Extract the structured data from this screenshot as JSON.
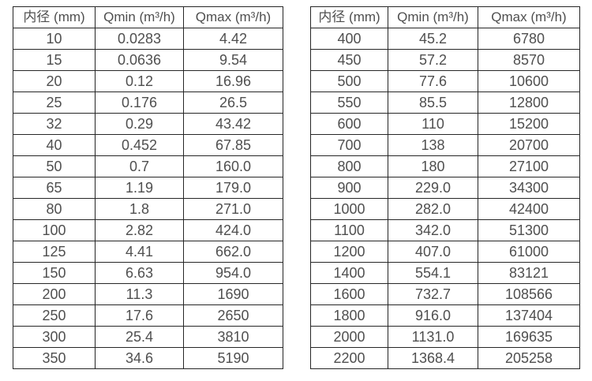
{
  "colors": {
    "border": "#262626",
    "text": "#4f4f4f",
    "background": "#ffffff"
  },
  "table_left": {
    "headers": [
      "内径 (mm)",
      "Qmin (m³/h)",
      "Qmax (m³/h)"
    ],
    "rows": [
      [
        "10",
        "0.0283",
        "4.42"
      ],
      [
        "15",
        "0.0636",
        "9.54"
      ],
      [
        "20",
        "0.12",
        "16.96"
      ],
      [
        "25",
        "0.176",
        "26.5"
      ],
      [
        "32",
        "0.29",
        "43.42"
      ],
      [
        "40",
        "0.452",
        "67.85"
      ],
      [
        "50",
        "0.7",
        "160.0"
      ],
      [
        "65",
        "1.19",
        "179.0"
      ],
      [
        "80",
        "1.8",
        "271.0"
      ],
      [
        "100",
        "2.82",
        "424.0"
      ],
      [
        "125",
        "4.41",
        "662.0"
      ],
      [
        "150",
        "6.63",
        "954.0"
      ],
      [
        "200",
        "11.3",
        "1690"
      ],
      [
        "250",
        "17.6",
        "2650"
      ],
      [
        "300",
        "25.4",
        "3810"
      ],
      [
        "350",
        "34.6",
        "5190"
      ]
    ]
  },
  "table_right": {
    "headers": [
      "内径 (mm)",
      "Qmin (m³/h)",
      "Qmax (m³/h)"
    ],
    "rows": [
      [
        "400",
        "45.2",
        "6780"
      ],
      [
        "450",
        "57.2",
        "8570"
      ],
      [
        "500",
        "77.6",
        "10600"
      ],
      [
        "550",
        "85.5",
        "12800"
      ],
      [
        "600",
        "110",
        "15200"
      ],
      [
        "700",
        "138",
        "20700"
      ],
      [
        "800",
        "180",
        "27100"
      ],
      [
        "900",
        "229.0",
        "34300"
      ],
      [
        "1000",
        "282.0",
        "42400"
      ],
      [
        "1100",
        "342.0",
        "51300"
      ],
      [
        "1200",
        "407.0",
        "61000"
      ],
      [
        "1400",
        "554.1",
        "83121"
      ],
      [
        "1600",
        "732.7",
        "108566"
      ],
      [
        "1800",
        "916.0",
        "137404"
      ],
      [
        "2000",
        "1131.0",
        "169635"
      ],
      [
        "2200",
        "1368.4",
        "205258"
      ]
    ]
  }
}
